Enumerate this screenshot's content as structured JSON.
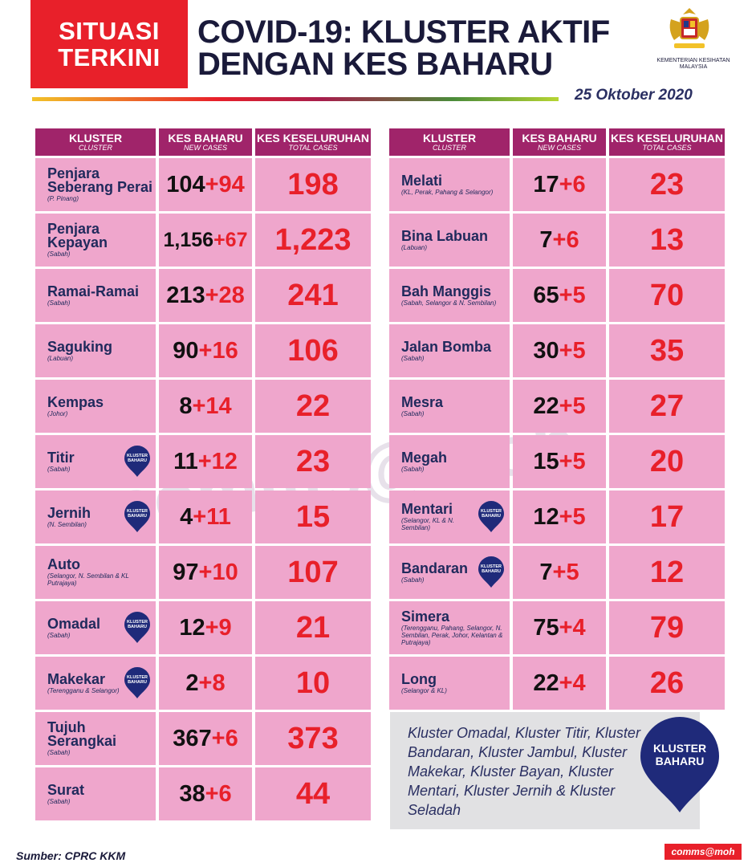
{
  "header": {
    "badge_line1": "SITUASI",
    "badge_line2": "TERKINI",
    "title_line1": "COVID-19: KLUSTER AKTIF",
    "title_line2": "DENGAN KES BAHARU",
    "ministry": "KEMENTERIAN KESIHATAN MALAYSIA",
    "date": "25 Oktober 2020"
  },
  "columns": {
    "cluster": "KLUSTER",
    "cluster_en": "CLUSTER",
    "new": "KES BAHARU",
    "new_en": "NEW CASES",
    "total": "KES KESELURUHAN",
    "total_en": "TOTAL CASES"
  },
  "left_rows": [
    {
      "name": "Penjara Seberang Perai",
      "location": "(P. Pinang)",
      "base": "104",
      "new": "+94",
      "total": "198",
      "pin": false
    },
    {
      "name": "Penjara Kepayan",
      "location": "(Sabah)",
      "base": "1,156",
      "new": "+67",
      "total": "1,223",
      "pin": false
    },
    {
      "name": "Ramai-Ramai",
      "location": "(Sabah)",
      "base": "213",
      "new": "+28",
      "total": "241",
      "pin": false
    },
    {
      "name": "Saguking",
      "location": "(Labuan)",
      "base": "90",
      "new": "+16",
      "total": "106",
      "pin": false
    },
    {
      "name": "Kempas",
      "location": "(Johor)",
      "base": "8",
      "new": "+14",
      "total": "22",
      "pin": false
    },
    {
      "name": "Titir",
      "location": "(Sabah)",
      "base": "11",
      "new": "+12",
      "total": "23",
      "pin": true
    },
    {
      "name": "Jernih",
      "location": "(N. Sembilan)",
      "base": "4",
      "new": "+11",
      "total": "15",
      "pin": true
    },
    {
      "name": "Auto",
      "location": "(Selangor, N. Sembilan & KL Putrajaya)",
      "base": "97",
      "new": "+10",
      "total": "107",
      "pin": false
    },
    {
      "name": "Omadal",
      "location": "(Sabah)",
      "base": "12",
      "new": "+9",
      "total": "21",
      "pin": true
    },
    {
      "name": "Makekar",
      "location": "(Terengganu & Selangor)",
      "base": "2",
      "new": "+8",
      "total": "10",
      "pin": true
    },
    {
      "name": "Tujuh Serangkai",
      "location": "(Sabah)",
      "base": "367",
      "new": "+6",
      "total": "373",
      "pin": false
    },
    {
      "name": "Surat",
      "location": "(Sabah)",
      "base": "38",
      "new": "+6",
      "total": "44",
      "pin": false
    }
  ],
  "right_rows": [
    {
      "name": "Melati",
      "location": "(KL, Perak, Pahang & Selangor)",
      "base": "17",
      "new": "+6",
      "total": "23",
      "pin": false
    },
    {
      "name": "Bina Labuan",
      "location": "(Labuan)",
      "base": "7",
      "new": "+6",
      "total": "13",
      "pin": false
    },
    {
      "name": "Bah Manggis",
      "location": "(Sabah, Selangor & N. Sembilan)",
      "base": "65",
      "new": "+5",
      "total": "70",
      "pin": false
    },
    {
      "name": "Jalan Bomba",
      "location": "(Sabah)",
      "base": "30",
      "new": "+5",
      "total": "35",
      "pin": false
    },
    {
      "name": "Mesra",
      "location": "(Sabah)",
      "base": "22",
      "new": "+5",
      "total": "27",
      "pin": false
    },
    {
      "name": "Megah",
      "location": "(Sabah)",
      "base": "15",
      "new": "+5",
      "total": "20",
      "pin": false
    },
    {
      "name": "Mentari",
      "location": "(Selangor, KL & N. Sembilan)",
      "base": "12",
      "new": "+5",
      "total": "17",
      "pin": true
    },
    {
      "name": "Bandaran",
      "location": "(Sabah)",
      "base": "7",
      "new": "+5",
      "total": "12",
      "pin": true
    },
    {
      "name": "Simera",
      "location": "(Terengganu, Pahang, Selangor, N. Sembilan, Perak, Johor, Kelantan & Putrajaya)",
      "base": "75",
      "new": "+4",
      "total": "79",
      "pin": false
    },
    {
      "name": "Long",
      "location": "(Selangor & KL)",
      "base": "22",
      "new": "+4",
      "total": "26",
      "pin": false
    }
  ],
  "pin_label": "KLUSTER BAHARU",
  "note": {
    "text": "Kluster Omadal, Kluster Titir, Kluster Bandaran, Kluster Jambul, Kluster Makekar, Kluster Bayan, Kluster Mentari, Kluster Jernih & Kluster Seladah",
    "pin_label": "KLUSTER BAHARU"
  },
  "footer": {
    "source": "Sumber: CPRC KKM",
    "tag": "comms@moh",
    "watermark": "comms@moh"
  },
  "colors": {
    "accent_red": "#e8202a",
    "header_magenta": "#a0246a",
    "cell_pink": "#efa6cc",
    "navy": "#2a2f62",
    "note_grey": "#e1e1e3"
  }
}
